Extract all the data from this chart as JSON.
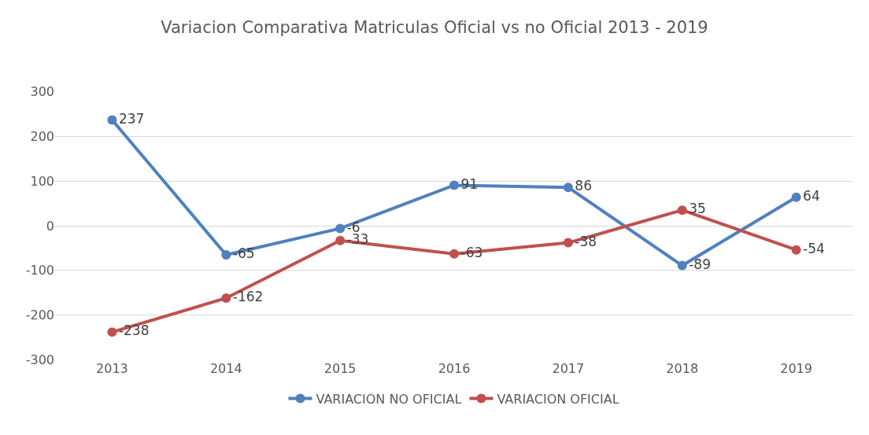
{
  "chart_data": {
    "type": "line",
    "title": "Variacion Comparativa Matriculas Oficial vs no Oficial 2013 - 2019",
    "categories": [
      "2013",
      "2014",
      "2015",
      "2016",
      "2017",
      "2018",
      "2019"
    ],
    "series": [
      {
        "name": "VARIACION NO OFICIAL",
        "color": "#4f81bd",
        "values": [
          237,
          -65,
          -6,
          91,
          86,
          -89,
          64
        ]
      },
      {
        "name": "VARIACION OFICIAL",
        "color": "#c0504d",
        "values": [
          -238,
          -162,
          -33,
          -63,
          -38,
          35,
          -54
        ]
      }
    ],
    "ylim": [
      -300,
      300
    ],
    "yticks": [
      -300,
      -200,
      -100,
      0,
      100,
      200,
      300
    ],
    "grid": "y",
    "legend": "bottom",
    "marker": "circle",
    "line_style": "solid",
    "data_labels": true
  }
}
